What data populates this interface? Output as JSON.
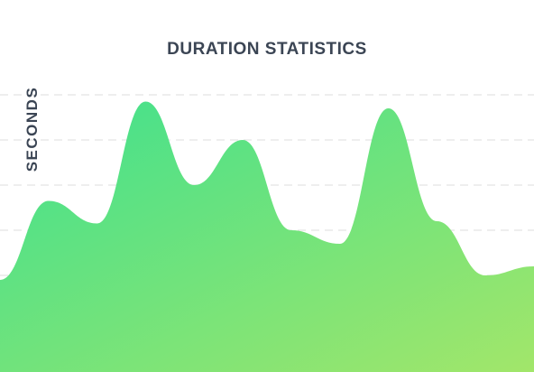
{
  "chart_data": {
    "type": "area",
    "title": "DURATION STATISTICS",
    "xlabel": "",
    "ylabel": "SECONDS",
    "grid": true,
    "grid_style": "dashed",
    "legend": "none",
    "x": [
      0,
      1,
      2,
      3,
      4,
      5,
      6,
      7,
      8,
      9,
      10,
      11
    ],
    "values": [
      0.9,
      2.65,
      2.15,
      4.85,
      3.0,
      4.0,
      2.0,
      1.7,
      4.7,
      2.2,
      1.0,
      1.2
    ],
    "ylim": [
      0,
      5
    ],
    "colors": {
      "title": "#3b4554",
      "grid": "#e3e3e3",
      "fill_start": "#3fe08e",
      "fill_end": "#a2e66a"
    }
  }
}
